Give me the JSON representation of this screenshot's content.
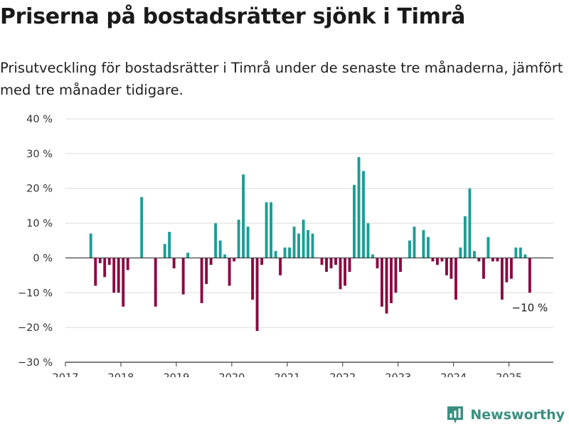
{
  "title": "Priserna på bostadsrätter sjönk i Timrå",
  "subtitle": "Prisutveckling för bostadsrätter i Timrå under de senaste tre månaderna, jämfört med tre månader tidigare.",
  "brand": {
    "name": "Newsworthy",
    "icon": "bar-chart-logo-icon"
  },
  "colors": {
    "positive": "#1a9e96",
    "negative": "#8b0a43",
    "grid": "#dcdcdc",
    "brand": "#3b8f80"
  },
  "chart_data": {
    "type": "bar",
    "xlabel": "",
    "ylabel": "",
    "ylim": [
      -30,
      40
    ],
    "xlim": [
      2017,
      2025.8
    ],
    "y_ticks": [
      -30,
      -20,
      -10,
      0,
      10,
      20,
      30,
      40
    ],
    "y_tick_labels": [
      "−30 %",
      "−20 %",
      "−10 %",
      "0 %",
      "10 %",
      "20 %",
      "30 %",
      "40 %"
    ],
    "x_ticks": [
      2017,
      2018,
      2019,
      2020,
      2021,
      2022,
      2023,
      2024,
      2025
    ],
    "x_tick_labels": [
      "2017",
      "2018",
      "2019",
      "2020",
      "2021",
      "2022",
      "2023",
      "2024",
      "2025"
    ],
    "grid": true,
    "annotation": {
      "text": "−10 %",
      "x": 2025.375,
      "y": -10
    },
    "x": [
      2017.458,
      2017.542,
      2017.625,
      2017.708,
      2017.792,
      2017.875,
      2017.958,
      2018.042,
      2018.125,
      2018.208,
      2018.292,
      2018.375,
      2018.458,
      2018.542,
      2018.625,
      2018.708,
      2018.792,
      2018.875,
      2018.958,
      2019.042,
      2019.125,
      2019.208,
      2019.292,
      2019.375,
      2019.458,
      2019.542,
      2019.625,
      2019.708,
      2019.792,
      2019.875,
      2019.958,
      2020.042,
      2020.125,
      2020.208,
      2020.292,
      2020.375,
      2020.458,
      2020.542,
      2020.625,
      2020.708,
      2020.792,
      2020.875,
      2020.958,
      2021.042,
      2021.125,
      2021.208,
      2021.292,
      2021.375,
      2021.458,
      2021.542,
      2021.625,
      2021.708,
      2021.792,
      2021.875,
      2021.958,
      2022.042,
      2022.125,
      2022.208,
      2022.292,
      2022.375,
      2022.458,
      2022.542,
      2022.625,
      2022.708,
      2022.792,
      2022.875,
      2022.958,
      2023.042,
      2023.125,
      2023.208,
      2023.292,
      2023.375,
      2023.458,
      2023.542,
      2023.625,
      2023.708,
      2023.792,
      2023.875,
      2023.958,
      2024.042,
      2024.125,
      2024.208,
      2024.292,
      2024.375,
      2024.458,
      2024.542,
      2024.625,
      2024.708,
      2024.792,
      2024.875,
      2024.958,
      2025.042,
      2025.125,
      2025.208,
      2025.292,
      2025.375
    ],
    "values": [
      7,
      -8,
      -1.5,
      -5.5,
      -2,
      -10,
      -10,
      -14,
      -3.5,
      0,
      0,
      17.5,
      0,
      0,
      -14,
      0,
      4,
      7.5,
      -3,
      0,
      -10.5,
      1.5,
      0,
      0,
      -13,
      -7.5,
      -2,
      10,
      5,
      1,
      -8,
      -1,
      11,
      24,
      9,
      -12,
      -21,
      -2,
      16,
      16,
      2,
      -5,
      3,
      3,
      9,
      7,
      11,
      8,
      7,
      0,
      -2,
      -4,
      -3,
      -2,
      -9,
      -8,
      -4,
      21,
      29,
      25,
      10,
      1,
      -3,
      -14,
      -16,
      -13,
      -10,
      -4,
      0,
      5,
      9,
      0,
      8,
      6,
      -1,
      -2,
      -1,
      -5,
      -6,
      -12,
      3,
      12,
      20,
      2,
      -1,
      -6,
      6,
      -1,
      -1,
      -12,
      -7,
      -6,
      3,
      3,
      1,
      -10
    ]
  }
}
